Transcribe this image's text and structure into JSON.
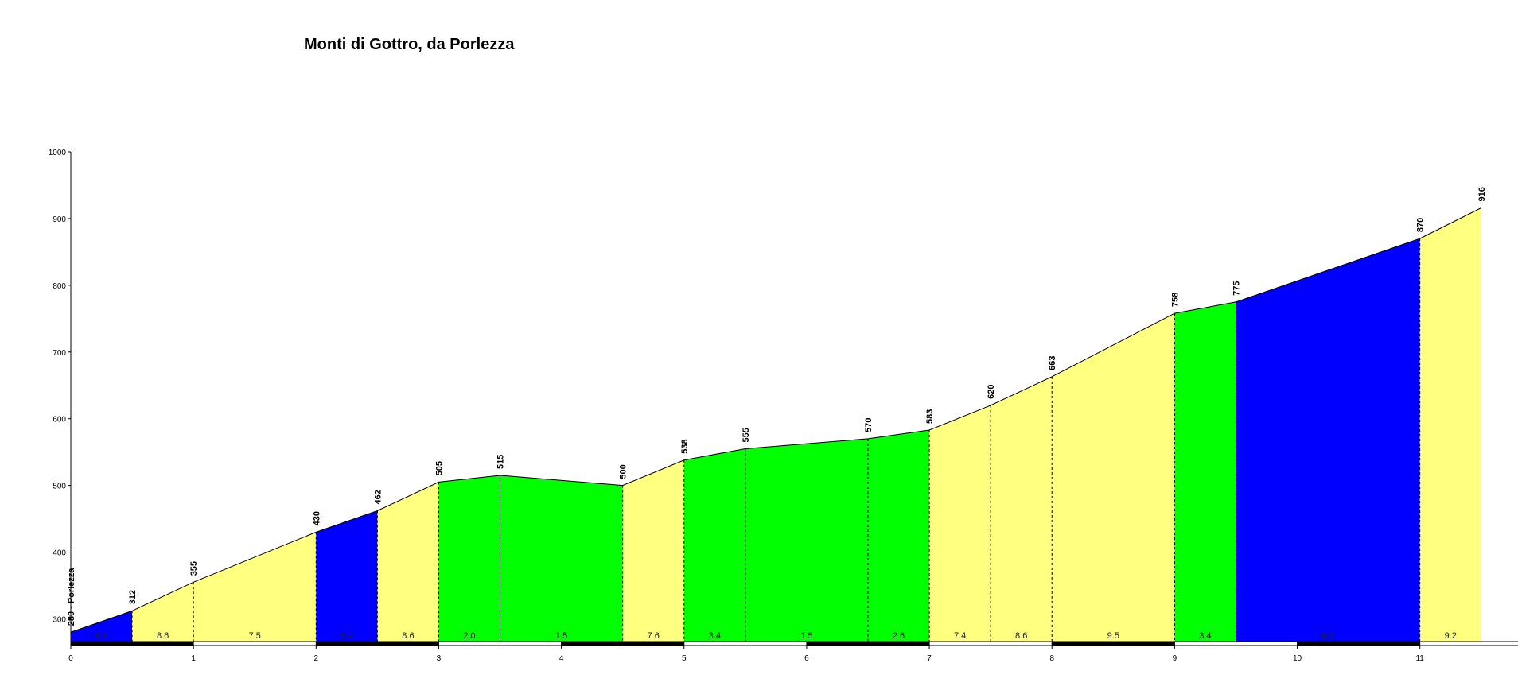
{
  "chart_data": {
    "type": "profile",
    "title": "Monti di Gottro, da Porlezza",
    "x": [
      0,
      0.5,
      1,
      2,
      2.5,
      3,
      3.5,
      4.5,
      5,
      5.5,
      6.5,
      7,
      7.5,
      8,
      9,
      9.5,
      11,
      11.5
    ],
    "values": [
      280,
      312,
      355,
      430,
      462,
      505,
      515,
      500,
      538,
      555,
      570,
      583,
      620,
      663,
      758,
      775,
      870,
      916
    ],
    "value_labels": [
      "280 - Porlezza",
      "312",
      "355",
      "430",
      "462",
      "505",
      "515",
      "500",
      "538",
      "555",
      "570",
      "583",
      "620",
      "663",
      "758",
      "775",
      "870",
      "916"
    ],
    "segments": {
      "values": [
        6.4,
        8.6,
        7.5,
        6.4,
        8.6,
        2.0,
        1.5,
        7.6,
        3.4,
        1.5,
        2.6,
        7.4,
        8.6,
        9.5,
        3.4,
        6.3,
        9.2
      ],
      "value_labels": [
        "6.4",
        "8.6",
        "7.5",
        "6.4",
        "8.6",
        "2.0",
        "1.5",
        "7.6",
        "3.4",
        "1.5",
        "2.6",
        "7.4",
        "8.6",
        "9.5",
        "3.4",
        "6.3",
        "9.2"
      ],
      "colors": [
        "#0000ff",
        "#ffff80",
        "#ffff80",
        "#0000ff",
        "#ffff80",
        "#00ff00",
        "#00ff00",
        "#ffff80",
        "#00ff00",
        "#00ff00",
        "#00ff00",
        "#ffff80",
        "#ffff80",
        "#ffff80",
        "#00ff00",
        "#0000ff",
        "#ffff80"
      ]
    },
    "xlim": [
      0,
      11.8
    ],
    "xticks": [
      0,
      1,
      2,
      3,
      4,
      5,
      6,
      7,
      8,
      9,
      10,
      11
    ],
    "ylim": [
      266,
      1000
    ],
    "yticks": [
      300,
      400,
      500,
      600,
      700,
      800,
      900,
      1000
    ]
  }
}
